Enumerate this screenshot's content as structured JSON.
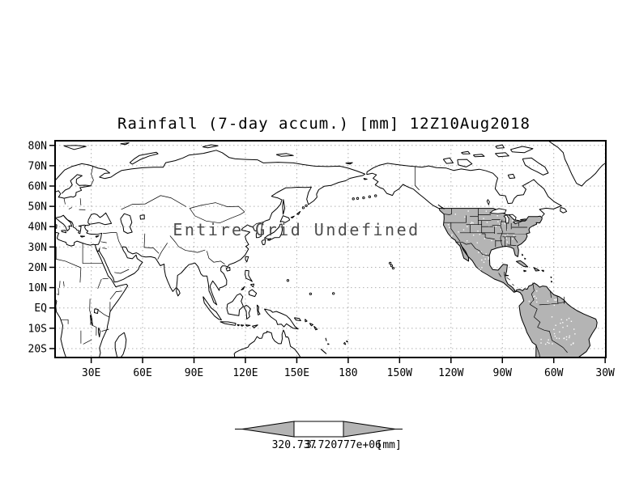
{
  "title": {
    "text": "Rainfall (7-day accum.) [mm] 12Z10Aug2018"
  },
  "annotation": {
    "text": "Entire Grid Undefined"
  },
  "axes": {
    "x_ticks": [
      {
        "label": "30E",
        "lon": 30
      },
      {
        "label": "60E",
        "lon": 60
      },
      {
        "label": "90E",
        "lon": 90
      },
      {
        "label": "120E",
        "lon": 120
      },
      {
        "label": "150E",
        "lon": 150
      },
      {
        "label": "180",
        "lon": 180
      },
      {
        "label": "150W",
        "lon": 210
      },
      {
        "label": "120W",
        "lon": 240
      },
      {
        "label": "90W",
        "lon": 270
      },
      {
        "label": "60W",
        "lon": 300
      },
      {
        "label": "30W",
        "lon": 330
      }
    ],
    "y_ticks": [
      {
        "label": "80N",
        "lat": 80
      },
      {
        "label": "70N",
        "lat": 70
      },
      {
        "label": "60N",
        "lat": 60
      },
      {
        "label": "50N",
        "lat": 50
      },
      {
        "label": "40N",
        "lat": 40
      },
      {
        "label": "30N",
        "lat": 30
      },
      {
        "label": "20N",
        "lat": 20
      },
      {
        "label": "10N",
        "lat": 10
      },
      {
        "label": "EQ",
        "lat": 0
      },
      {
        "label": "10S",
        "lat": -10
      },
      {
        "label": "20S",
        "lat": -20
      }
    ],
    "lon_range": [
      8.9,
      330.4
    ],
    "lat_range": [
      -24.4,
      82.3
    ],
    "grid_lon_step": 30,
    "grid_lat_step": 10
  },
  "colorbar": {
    "left_label": "320.737",
    "right_label": "3.720777e+06",
    "units": "[mm]"
  },
  "colors": {
    "land_shade": "#b4b4b4",
    "grid": "#b0b0b0",
    "coast": "#000000",
    "annotation": "#4d4d4d",
    "background": "#ffffff"
  },
  "chart_data": {
    "type": "map",
    "title": "Rainfall (7-day accum.) [mm] 12Z10Aug2018",
    "projection": "equirectangular (lat-lon)",
    "lon_range_deg_east": [
      8.9,
      330.4
    ],
    "lat_range": [
      -24.4,
      82.3
    ],
    "x_tick_labels": [
      "30E",
      "60E",
      "90E",
      "120E",
      "150E",
      "180",
      "150W",
      "120W",
      "90W",
      "60W",
      "30W"
    ],
    "y_tick_labels": [
      "80N",
      "70N",
      "60N",
      "50N",
      "40N",
      "30N",
      "20N",
      "10N",
      "EQ",
      "10S",
      "20S"
    ],
    "grid": "dotted gray, 30 deg lon x 10 deg lat",
    "data_status": "Entire Grid Undefined (no rainfall values plotted)",
    "shaded_regions_gray": [
      "United States south of 49N with state borders",
      "Mexico",
      "Central America",
      "Cuba and Caribbean islands",
      "South America north of ~24S"
    ],
    "colorbar": {
      "shape": "left arrow + white box + right arrow",
      "labels": [
        "320.737",
        "3.720777e+06"
      ],
      "units": "[mm]"
    },
    "legend_position": "bottom center"
  }
}
